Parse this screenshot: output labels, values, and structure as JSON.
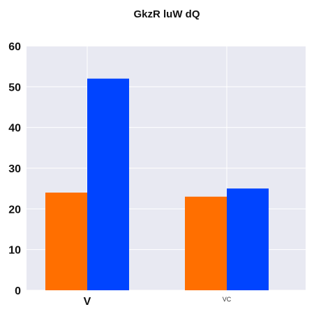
{
  "chart_data": {
    "type": "bar",
    "title": "GkzR luW dQ",
    "xlabel": "",
    "ylabel": "",
    "categories": [
      "V",
      "VC"
    ],
    "series": [
      {
        "values": [
          24,
          23
        ],
        "color": "#ff6f00"
      },
      {
        "values": [
          52,
          25
        ],
        "color": "#0044ff"
      }
    ],
    "ylim": [
      0,
      60
    ],
    "yticks": [
      "0",
      "10",
      "20",
      "30",
      "40",
      "50",
      "60"
    ],
    "grid": true,
    "legend": "none"
  },
  "style": {
    "plot_background": "#e8e9f2",
    "grid_color": "#ffffff"
  }
}
